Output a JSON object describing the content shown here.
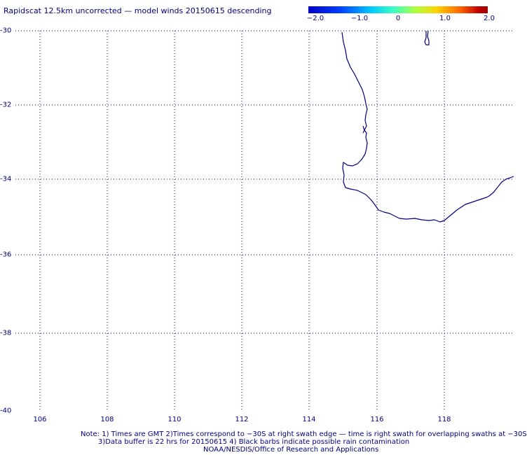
{
  "title": "Rapidscat 12.5km uncorrected — model winds 20150615 descending",
  "colorbar": {
    "labels": [
      "−2.0",
      "−1.0",
      "0",
      "1.0",
      "2.0"
    ],
    "min": -2.0,
    "max": 2.0
  },
  "map": {
    "lat_labels": [
      "-30",
      "-32",
      "-34",
      "-36",
      "-38",
      "-40"
    ],
    "lon_labels": [
      "106",
      "108",
      "110",
      "112",
      "114",
      "116",
      "118"
    ],
    "lat_range": [
      -40,
      -30
    ],
    "lon_range": [
      105,
      120
    ],
    "grid": "dotted",
    "coast_color": "#000080"
  },
  "notes": {
    "line1": "Note: 1) Times are GMT 2)Times correspond to −30S at right swath edge — time is right swath for overlapping swaths at −30S",
    "line2": "3)Data buffer is 22 hrs for 20150615 4) Black barbs indicate possible rain contamination",
    "line3": "NOAA/NESDIS/Office of Research and Applications"
  }
}
